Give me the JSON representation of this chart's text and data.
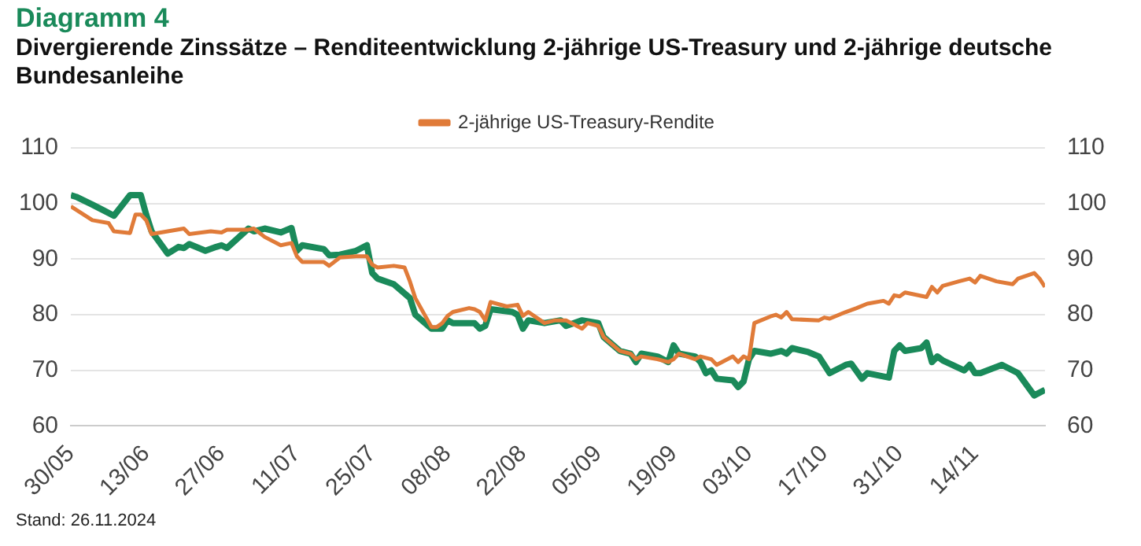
{
  "chart_data": {
    "type": "line",
    "title": "Diagramm 4",
    "subtitle": "Divergierende Zinssätze – Renditeentwicklung 2-jährige US-Treasury und 2-jährige deutsche Bundesanleihe",
    "series": [
      {
        "name": "2-jährige US-Treasury-Rendite",
        "color": "#e07b39",
        "x": [
          "2024-05-30",
          "2024-06-03",
          "2024-06-06",
          "2024-06-07",
          "2024-06-10",
          "2024-06-11",
          "2024-06-12",
          "2024-06-13",
          "2024-06-14",
          "2024-06-17",
          "2024-06-20",
          "2024-06-21",
          "2024-06-25",
          "2024-06-27",
          "2024-06-28",
          "2024-07-02",
          "2024-07-03",
          "2024-07-05",
          "2024-07-08",
          "2024-07-10",
          "2024-07-11",
          "2024-07-12",
          "2024-07-16",
          "2024-07-17",
          "2024-07-19",
          "2024-07-22",
          "2024-07-24",
          "2024-07-25",
          "2024-07-26",
          "2024-07-29",
          "2024-07-31",
          "2024-08-01",
          "2024-08-02",
          "2024-08-05",
          "2024-08-06",
          "2024-08-07",
          "2024-08-08",
          "2024-08-09",
          "2024-08-12",
          "2024-08-13",
          "2024-08-14",
          "2024-08-15",
          "2024-08-16",
          "2024-08-19",
          "2024-08-21",
          "2024-08-22",
          "2024-08-23",
          "2024-08-26",
          "2024-08-28",
          "2024-08-30",
          "2024-09-02",
          "2024-09-03",
          "2024-09-05",
          "2024-09-06",
          "2024-09-09",
          "2024-09-11",
          "2024-09-12",
          "2024-09-13",
          "2024-09-16",
          "2024-09-18",
          "2024-09-19",
          "2024-09-20",
          "2024-09-23",
          "2024-09-24",
          "2024-09-26",
          "2024-09-27",
          "2024-09-30",
          "2024-10-01",
          "2024-10-02",
          "2024-10-03",
          "2024-10-04",
          "2024-10-07",
          "2024-10-08",
          "2024-10-09",
          "2024-10-10",
          "2024-10-11",
          "2024-10-16",
          "2024-10-17",
          "2024-10-18",
          "2024-10-21",
          "2024-10-23",
          "2024-10-25",
          "2024-10-28",
          "2024-10-29",
          "2024-10-30",
          "2024-10-31",
          "2024-11-01",
          "2024-11-05",
          "2024-11-06",
          "2024-11-07",
          "2024-11-08",
          "2024-11-11",
          "2024-11-13",
          "2024-11-14",
          "2024-11-15",
          "2024-11-18",
          "2024-11-21",
          "2024-11-22",
          "2024-11-25",
          "2024-11-26",
          "2024-11-27"
        ],
        "values": [
          99.5,
          97,
          96.5,
          95,
          94.7,
          98,
          98,
          97,
          94.5,
          95,
          95.5,
          94.5,
          95,
          94.8,
          95.3,
          95.3,
          95.5,
          94,
          92.5,
          92.9,
          90.5,
          89.5,
          89.5,
          88.8,
          90.3,
          90.5,
          90.5,
          89,
          88.5,
          88.8,
          88.5,
          86,
          83,
          77.8,
          77.8,
          78.5,
          79.8,
          80.5,
          81.2,
          81,
          80.5,
          79,
          82.3,
          81.5,
          81.8,
          79.8,
          80.5,
          78.5,
          79,
          79,
          77.5,
          78.5,
          78,
          76,
          73.5,
          73,
          72,
          72.5,
          72,
          71.5,
          72,
          73,
          72,
          72.5,
          72,
          71,
          72.5,
          71.5,
          72.5,
          72,
          78.5,
          79.7,
          80,
          79.5,
          80.5,
          79.2,
          79,
          79.5,
          79.3,
          80.5,
          81.2,
          82,
          82.5,
          82,
          83.5,
          83.3,
          84,
          83.2,
          85,
          84,
          85.2,
          86,
          86.5,
          85.8,
          87,
          86,
          85.5,
          86.5,
          87.5,
          86.5,
          85
        ]
      },
      {
        "color": "#1a8a5a",
        "x": [
          "2024-05-30",
          "2024-05-31",
          "2024-06-03",
          "2024-06-05",
          "2024-06-07",
          "2024-06-10",
          "2024-06-12",
          "2024-06-13",
          "2024-06-14",
          "2024-06-17",
          "2024-06-19",
          "2024-06-20",
          "2024-06-21",
          "2024-06-24",
          "2024-06-26",
          "2024-06-27",
          "2024-06-28",
          "2024-07-02",
          "2024-07-03",
          "2024-07-05",
          "2024-07-08",
          "2024-07-10",
          "2024-07-11",
          "2024-07-12",
          "2024-07-16",
          "2024-07-17",
          "2024-07-19",
          "2024-07-22",
          "2024-07-24",
          "2024-07-25",
          "2024-07-26",
          "2024-07-29",
          "2024-08-01",
          "2024-08-02",
          "2024-08-05",
          "2024-08-07",
          "2024-08-08",
          "2024-08-09",
          "2024-08-13",
          "2024-08-14",
          "2024-08-15",
          "2024-08-16",
          "2024-08-20",
          "2024-08-21",
          "2024-08-22",
          "2024-08-23",
          "2024-08-26",
          "2024-08-29",
          "2024-08-30",
          "2024-09-02",
          "2024-09-05",
          "2024-09-06",
          "2024-09-09",
          "2024-09-11",
          "2024-09-12",
          "2024-09-13",
          "2024-09-16",
          "2024-09-18",
          "2024-09-19",
          "2024-09-20",
          "2024-09-23",
          "2024-09-24",
          "2024-09-25",
          "2024-09-26",
          "2024-09-27",
          "2024-09-30",
          "2024-10-01",
          "2024-10-02",
          "2024-10-03",
          "2024-10-04",
          "2024-10-07",
          "2024-10-09",
          "2024-10-10",
          "2024-10-11",
          "2024-10-14",
          "2024-10-16",
          "2024-10-17",
          "2024-10-18",
          "2024-10-21",
          "2024-10-22",
          "2024-10-24",
          "2024-10-25",
          "2024-10-29",
          "2024-10-30",
          "2024-10-31",
          "2024-11-01",
          "2024-11-04",
          "2024-11-05",
          "2024-11-06",
          "2024-11-07",
          "2024-11-08",
          "2024-11-12",
          "2024-11-13",
          "2024-11-14",
          "2024-11-15",
          "2024-11-19",
          "2024-11-21",
          "2024-11-22",
          "2024-11-25",
          "2024-11-27"
        ],
        "values": [
          101.5,
          101.2,
          99.8,
          98.8,
          97.8,
          101.5,
          101.5,
          98,
          95,
          91,
          92.2,
          92,
          92.7,
          91.5,
          92.2,
          92.5,
          92,
          95.5,
          95,
          95.5,
          94.8,
          95.6,
          91.5,
          92.5,
          91.8,
          90.7,
          90.8,
          91.5,
          92.5,
          87.5,
          86.5,
          85.5,
          83,
          80,
          77.5,
          77.5,
          79,
          78.5,
          78.5,
          77.5,
          78,
          81,
          80.5,
          80,
          77.5,
          79,
          78.5,
          79,
          78,
          79,
          78.5,
          76,
          73.5,
          73,
          71.5,
          73,
          72.5,
          71.5,
          74.5,
          73,
          72.5,
          71.5,
          69.5,
          70,
          68.5,
          68.2,
          67,
          68,
          72,
          73.5,
          73,
          73.5,
          73,
          74,
          73.3,
          72.5,
          71,
          69.5,
          71,
          71.2,
          68.5,
          69.5,
          68.7,
          73.5,
          74.5,
          73.5,
          74,
          75,
          71.5,
          72.5,
          71.8,
          70,
          71,
          69.5,
          69.5,
          71,
          70,
          69.5,
          65.5,
          66.5
        ]
      }
    ],
    "xlim": [
      "2024-05-30",
      "2024-11-27"
    ],
    "xticks": [
      {
        "value": "2024-05-30",
        "label": "30/05"
      },
      {
        "value": "2024-06-13",
        "label": "13/06"
      },
      {
        "value": "2024-06-27",
        "label": "27/06"
      },
      {
        "value": "2024-07-11",
        "label": "11/07"
      },
      {
        "value": "2024-07-25",
        "label": "25/07"
      },
      {
        "value": "2024-08-08",
        "label": "08/08"
      },
      {
        "value": "2024-08-22",
        "label": "22/08"
      },
      {
        "value": "2024-09-05",
        "label": "05/09"
      },
      {
        "value": "2024-09-19",
        "label": "19/09"
      },
      {
        "value": "2024-10-03",
        "label": "03/10"
      },
      {
        "value": "2024-10-17",
        "label": "17/10"
      },
      {
        "value": "2024-10-31",
        "label": "31/10"
      },
      {
        "value": "2024-11-14",
        "label": "14/11"
      }
    ],
    "ylim": [
      60,
      110
    ],
    "yticks": [
      60,
      70,
      80,
      90,
      100,
      110
    ],
    "y2lim": [
      60,
      110
    ],
    "y2ticks": [
      60,
      70,
      80,
      90,
      100,
      110
    ],
    "grid": "y",
    "legend": "top",
    "marker": "none",
    "line_style": "solid",
    "annotations": [
      "Stand: 26.11.2024"
    ]
  }
}
